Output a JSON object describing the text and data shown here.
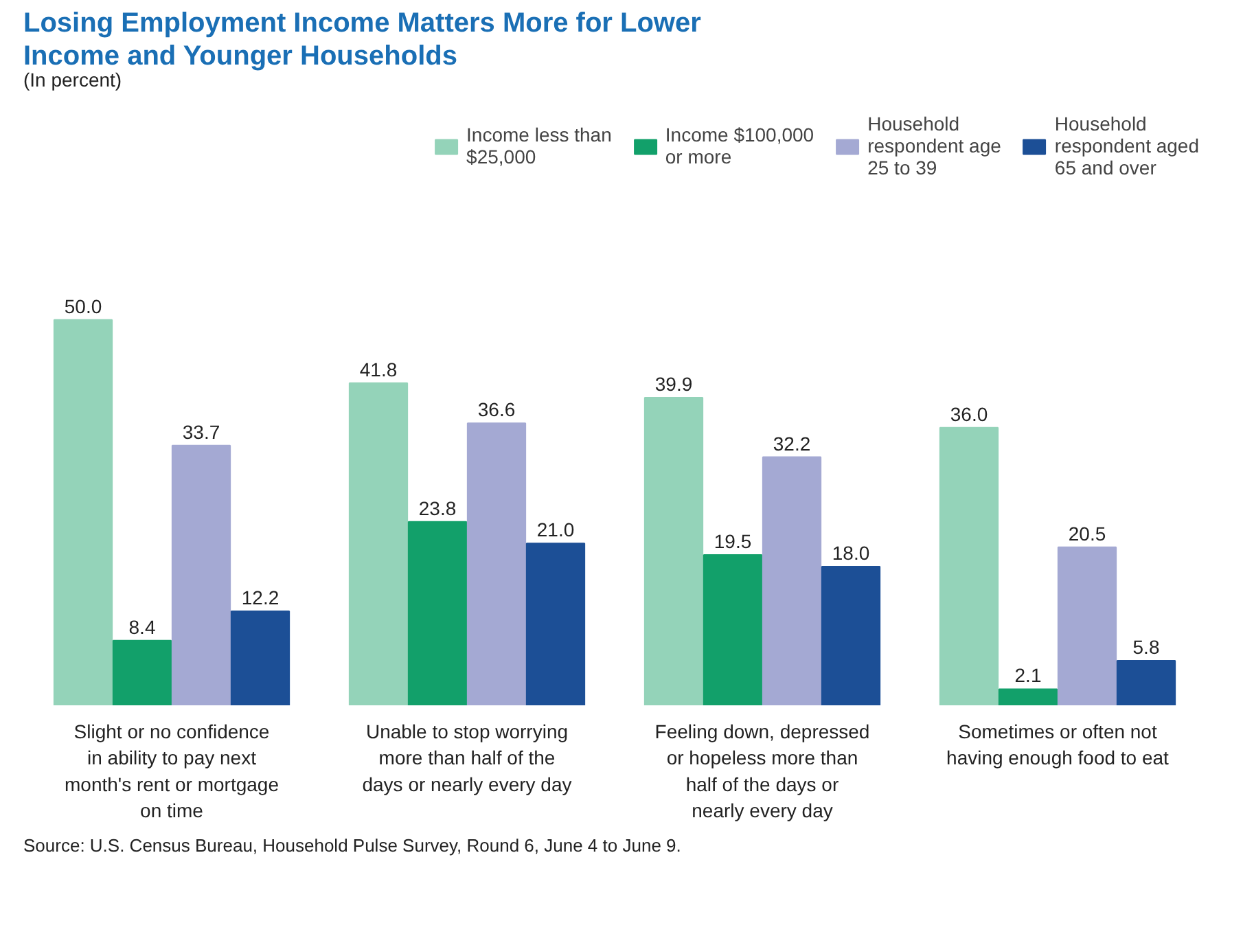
{
  "chart_data": {
    "type": "bar",
    "title": "Losing Employment Income Matters More for Lower Income and Younger Households",
    "subtitle": "(In percent)",
    "categories": [
      "Slight or no confidence in ability to pay next month's rent or mortgage on time",
      "Unable to stop worrying more than half of the days or nearly every day",
      "Feeling down, depressed or hopeless more than half of the days or nearly every day",
      "Sometimes or often not having enough food to eat"
    ],
    "series": [
      {
        "name": "Income less than $25,000",
        "color": "#94d3b9",
        "values": [
          50.0,
          41.8,
          39.9,
          36.0
        ],
        "value_labels": [
          "50.0",
          "41.8",
          "39.9",
          "36.0"
        ]
      },
      {
        "name": "Income $100,000 or more",
        "color": "#12a06a",
        "values": [
          8.4,
          23.8,
          19.5,
          2.1
        ],
        "value_labels": [
          "8.4",
          "23.8",
          "19.5",
          "2.1"
        ]
      },
      {
        "name": "Household respondent age 25 to 39",
        "color": "#a4a9d3",
        "values": [
          33.7,
          36.6,
          32.2,
          20.5
        ],
        "value_labels": [
          "33.7",
          "36.6",
          "32.2",
          "20.5"
        ]
      },
      {
        "name": "Household respondent aged 65 and over",
        "color": "#1c4f96",
        "values": [
          12.2,
          21.0,
          18.0,
          5.8
        ],
        "value_labels": [
          "12.2",
          "21.0",
          "18.0",
          "5.8"
        ]
      }
    ],
    "legend": "top right",
    "annotations": [
      "Source: U.S. Census Bureau, Household Pulse Survey, Round 6, June 4 to June 9."
    ]
  }
}
